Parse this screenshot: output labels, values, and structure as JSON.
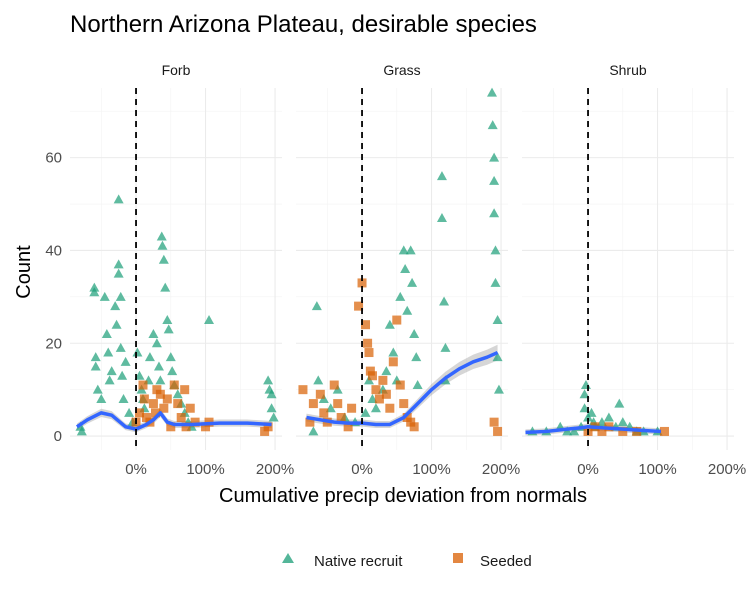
{
  "chart_data": {
    "type": "scatter",
    "title": "Northern Arizona Plateau, desirable species",
    "xlabel": "Cumulative precip deviation from normals",
    "ylabel": "Count",
    "x_units": "fraction (1.0 = 100%)",
    "xlim": [
      -0.95,
      2.1
    ],
    "ylim": [
      -3,
      75
    ],
    "x_ticks": [
      0,
      1,
      2
    ],
    "x_tick_labels": [
      "0%",
      "100%",
      "200%"
    ],
    "y_ticks": [
      0,
      20,
      40,
      60
    ],
    "y_tick_labels": [
      "0",
      "20",
      "40",
      "60"
    ],
    "reference_line": {
      "x": 0,
      "style": "dashed",
      "color": "#000000"
    },
    "legend": {
      "position": "bottom",
      "entries": [
        "Native recruit",
        "Seeded"
      ]
    },
    "colors": {
      "native": "#1b9e77",
      "seeded": "#d95f02",
      "smooth": "#3366ff",
      "ribbon": "#999999"
    },
    "facets": [
      {
        "label": "Forb",
        "series": [
          {
            "name": "Native recruit",
            "marker": "triangle",
            "points": [
              [
                -0.8,
                2
              ],
              [
                -0.78,
                1
              ],
              [
                -0.6,
                32
              ],
              [
                -0.6,
                31
              ],
              [
                -0.58,
                17
              ],
              [
                -0.58,
                15
              ],
              [
                -0.55,
                10
              ],
              [
                -0.5,
                8
              ],
              [
                -0.45,
                30
              ],
              [
                -0.42,
                22
              ],
              [
                -0.4,
                18
              ],
              [
                -0.38,
                12
              ],
              [
                -0.35,
                14
              ],
              [
                -0.3,
                28
              ],
              [
                -0.28,
                24
              ],
              [
                -0.25,
                51
              ],
              [
                -0.25,
                37
              ],
              [
                -0.25,
                35
              ],
              [
                -0.22,
                30
              ],
              [
                -0.22,
                19
              ],
              [
                -0.2,
                13
              ],
              [
                -0.18,
                8
              ],
              [
                -0.15,
                16
              ],
              [
                -0.1,
                5
              ],
              [
                -0.05,
                3
              ],
              [
                0.02,
                18
              ],
              [
                0.05,
                13
              ],
              [
                0.08,
                10
              ],
              [
                0.1,
                8
              ],
              [
                0.12,
                6
              ],
              [
                0.18,
                12
              ],
              [
                0.2,
                17
              ],
              [
                0.25,
                22
              ],
              [
                0.3,
                20
              ],
              [
                0.33,
                15
              ],
              [
                0.35,
                12
              ],
              [
                0.37,
                43
              ],
              [
                0.38,
                41
              ],
              [
                0.4,
                38
              ],
              [
                0.42,
                32
              ],
              [
                0.45,
                25
              ],
              [
                0.47,
                23
              ],
              [
                0.5,
                17
              ],
              [
                0.52,
                14
              ],
              [
                0.55,
                11
              ],
              [
                0.6,
                9
              ],
              [
                0.65,
                7
              ],
              [
                0.7,
                5
              ],
              [
                0.75,
                3
              ],
              [
                0.8,
                2
              ],
              [
                1.05,
                25
              ],
              [
                1.9,
                12
              ],
              [
                1.92,
                10
              ],
              [
                1.95,
                9
              ],
              [
                1.95,
                6
              ],
              [
                1.98,
                4
              ]
            ]
          },
          {
            "name": "Seeded",
            "marker": "square",
            "points": [
              [
                0.0,
                3
              ],
              [
                0.05,
                5
              ],
              [
                0.1,
                11
              ],
              [
                0.12,
                8
              ],
              [
                0.15,
                4
              ],
              [
                0.2,
                3
              ],
              [
                0.25,
                7
              ],
              [
                0.28,
                5
              ],
              [
                0.3,
                10
              ],
              [
                0.35,
                9
              ],
              [
                0.4,
                6
              ],
              [
                0.45,
                8
              ],
              [
                0.5,
                2
              ],
              [
                0.55,
                11
              ],
              [
                0.6,
                7
              ],
              [
                0.65,
                4
              ],
              [
                0.7,
                10
              ],
              [
                0.72,
                2
              ],
              [
                0.78,
                6
              ],
              [
                0.85,
                3
              ],
              [
                1.0,
                2
              ],
              [
                1.05,
                3
              ],
              [
                1.85,
                1
              ],
              [
                1.9,
                2
              ]
            ]
          }
        ],
        "smooth": [
          [
            -0.85,
            2
          ],
          [
            -0.7,
            3.5
          ],
          [
            -0.5,
            5
          ],
          [
            -0.35,
            4.5
          ],
          [
            -0.15,
            2
          ],
          [
            0.0,
            1.5
          ],
          [
            0.15,
            2.5
          ],
          [
            0.25,
            3.5
          ],
          [
            0.35,
            5
          ],
          [
            0.45,
            3
          ],
          [
            0.55,
            2.5
          ],
          [
            0.8,
            2.5
          ],
          [
            1.2,
            2.8
          ],
          [
            1.6,
            2.8
          ],
          [
            1.95,
            2.5
          ]
        ]
      },
      {
        "label": "Grass",
        "series": [
          {
            "name": "Native recruit",
            "marker": "triangle",
            "points": [
              [
                -0.7,
                1
              ],
              [
                -0.65,
                28
              ],
              [
                -0.63,
                12
              ],
              [
                -0.55,
                8
              ],
              [
                -0.45,
                6
              ],
              [
                -0.35,
                10
              ],
              [
                -0.25,
                4
              ],
              [
                -0.1,
                3
              ],
              [
                0.05,
                5
              ],
              [
                0.1,
                12
              ],
              [
                0.15,
                8
              ],
              [
                0.2,
                6
              ],
              [
                0.3,
                10
              ],
              [
                0.35,
                14
              ],
              [
                0.4,
                24
              ],
              [
                0.45,
                18
              ],
              [
                0.5,
                12
              ],
              [
                0.55,
                30
              ],
              [
                0.6,
                40
              ],
              [
                0.62,
                36
              ],
              [
                0.65,
                27
              ],
              [
                0.7,
                40
              ],
              [
                0.72,
                33
              ],
              [
                0.75,
                22
              ],
              [
                0.78,
                17
              ],
              [
                0.8,
                11
              ],
              [
                1.15,
                56
              ],
              [
                1.15,
                47
              ],
              [
                1.18,
                29
              ],
              [
                1.2,
                19
              ],
              [
                1.2,
                12
              ],
              [
                1.87,
                74
              ],
              [
                1.88,
                67
              ],
              [
                1.9,
                60
              ],
              [
                1.9,
                55
              ],
              [
                1.9,
                48
              ],
              [
                1.92,
                40
              ],
              [
                1.92,
                33
              ],
              [
                1.95,
                25
              ],
              [
                1.95,
                17
              ],
              [
                1.97,
                10
              ]
            ]
          },
          {
            "name": "Seeded",
            "marker": "square",
            "points": [
              [
                -0.85,
                10
              ],
              [
                -0.75,
                3
              ],
              [
                -0.7,
                7
              ],
              [
                -0.6,
                9
              ],
              [
                -0.55,
                5
              ],
              [
                -0.5,
                3
              ],
              [
                -0.4,
                11
              ],
              [
                -0.35,
                7
              ],
              [
                -0.3,
                4
              ],
              [
                -0.2,
                2
              ],
              [
                -0.15,
                6
              ],
              [
                -0.05,
                28
              ],
              [
                0.0,
                33
              ],
              [
                0.05,
                24
              ],
              [
                0.08,
                20
              ],
              [
                0.1,
                18
              ],
              [
                0.12,
                14
              ],
              [
                0.15,
                13
              ],
              [
                0.2,
                10
              ],
              [
                0.25,
                8
              ],
              [
                0.3,
                12
              ],
              [
                0.35,
                9
              ],
              [
                0.4,
                6
              ],
              [
                0.45,
                16
              ],
              [
                0.5,
                25
              ],
              [
                0.55,
                11
              ],
              [
                0.6,
                7
              ],
              [
                0.65,
                4
              ],
              [
                0.7,
                3
              ],
              [
                0.75,
                2
              ],
              [
                1.9,
                3
              ],
              [
                1.95,
                1
              ]
            ]
          }
        ],
        "smooth": [
          [
            -0.8,
            4
          ],
          [
            -0.6,
            3.5
          ],
          [
            -0.4,
            3
          ],
          [
            -0.2,
            2.8
          ],
          [
            0.0,
            2.8
          ],
          [
            0.2,
            2.5
          ],
          [
            0.4,
            2.5
          ],
          [
            0.6,
            4
          ],
          [
            0.8,
            7
          ],
          [
            1.0,
            10
          ],
          [
            1.2,
            12.5
          ],
          [
            1.4,
            14.5
          ],
          [
            1.6,
            16
          ],
          [
            1.8,
            17
          ],
          [
            1.95,
            18
          ]
        ]
      },
      {
        "label": "Shrub",
        "series": [
          {
            "name": "Native recruit",
            "marker": "triangle",
            "points": [
              [
                -0.8,
                1
              ],
              [
                -0.6,
                1
              ],
              [
                -0.4,
                2
              ],
              [
                -0.3,
                1
              ],
              [
                -0.2,
                1
              ],
              [
                -0.1,
                2
              ],
              [
                -0.05,
                6
              ],
              [
                -0.05,
                9
              ],
              [
                -0.03,
                11
              ],
              [
                0.0,
                4
              ],
              [
                0.05,
                5
              ],
              [
                0.08,
                3
              ],
              [
                0.1,
                2
              ],
              [
                0.2,
                3
              ],
              [
                0.3,
                4
              ],
              [
                0.4,
                2
              ],
              [
                0.45,
                7
              ],
              [
                0.5,
                3
              ],
              [
                0.6,
                2
              ],
              [
                0.7,
                1
              ],
              [
                0.8,
                1
              ],
              [
                1.0,
                1
              ]
            ]
          },
          {
            "name": "Seeded",
            "marker": "square",
            "points": [
              [
                0.0,
                1
              ],
              [
                0.1,
                2
              ],
              [
                0.2,
                1
              ],
              [
                0.3,
                2
              ],
              [
                0.5,
                1
              ],
              [
                0.7,
                1
              ],
              [
                1.1,
                1
              ]
            ]
          }
        ],
        "smooth": [
          [
            -0.9,
            0.8
          ],
          [
            -0.6,
            1.0
          ],
          [
            -0.3,
            1.5
          ],
          [
            -0.1,
            1.8
          ],
          [
            0.0,
            2.0
          ],
          [
            0.2,
            1.8
          ],
          [
            0.5,
            1.5
          ],
          [
            0.8,
            1.2
          ],
          [
            1.05,
            1.0
          ]
        ]
      }
    ]
  }
}
